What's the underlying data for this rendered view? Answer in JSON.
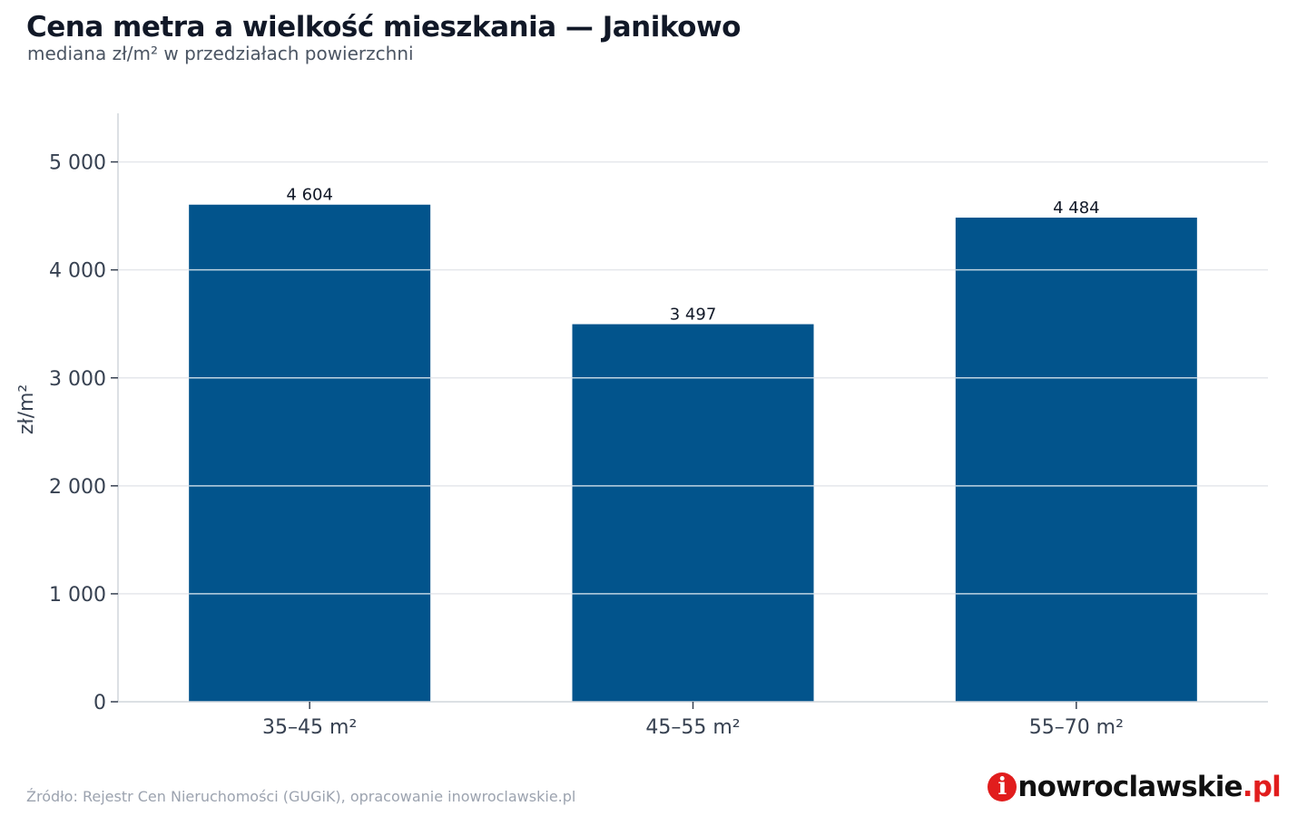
{
  "header": {
    "title": "Cena metra a wielkość mieszkania — Janikowo",
    "subtitle": "mediana zł/m² w przedziałach powierzchni"
  },
  "footer": {
    "source": "Źródło: Rejestr Cen Nieruchomości (GUGiK), opracowanie inowroclawskie.pl",
    "logo_letter": "i",
    "logo_main": "nowroclawskie",
    "logo_suffix": ".pl"
  },
  "colors": {
    "bar": "#02548c",
    "grid": "#e5e7eb",
    "axis": "#d1d5db",
    "tick_text": "#374151",
    "label_text": "#111827",
    "logo_accent": "#e11d1d"
  },
  "chart_data": {
    "type": "bar",
    "title": "Cena metra a wielkość mieszkania — Janikowo",
    "subtitle": "mediana zł/m² w przedziałach powierzchni",
    "xlabel": "",
    "ylabel": "zł/m²",
    "categories": [
      "35–45 m²",
      "45–55 m²",
      "55–70 m²"
    ],
    "values": [
      4604,
      3497,
      4484
    ],
    "value_labels": [
      "4 604",
      "3 497",
      "4 484"
    ],
    "yticks": [
      0,
      1000,
      2000,
      3000,
      4000,
      5000
    ],
    "ytick_labels": [
      "0",
      "1 000",
      "2 000",
      "3 000",
      "4 000",
      "5 000"
    ],
    "ylim": [
      0,
      5450
    ],
    "grid": true,
    "legend": "none"
  }
}
